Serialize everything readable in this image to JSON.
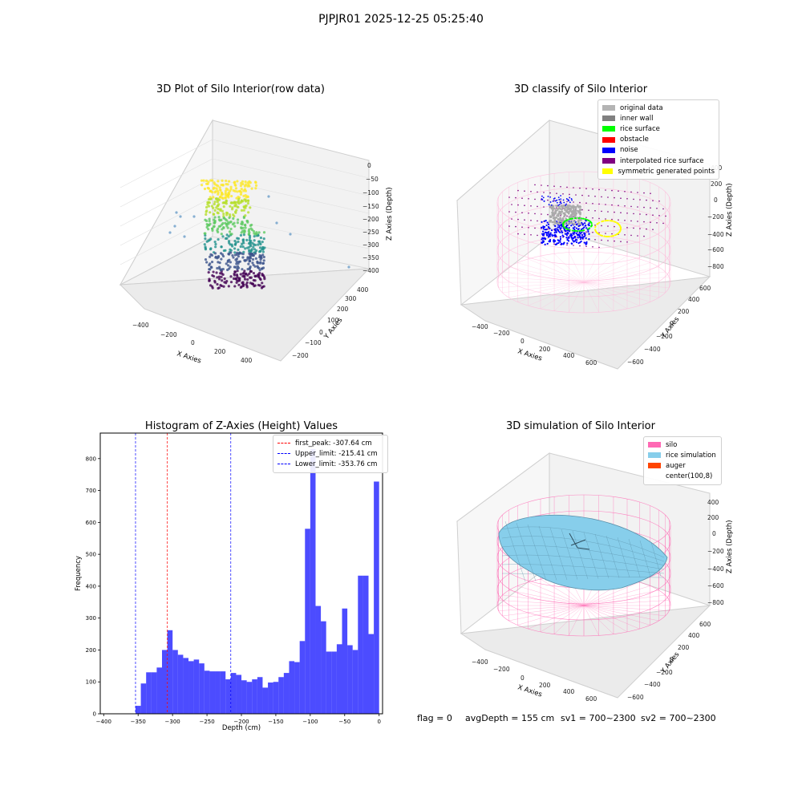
{
  "page": {
    "suptitle": "PJPJR01 2025-12-25 05:25:40"
  },
  "panels": {
    "raw": {
      "title": "3D Plot of Silo Interior(row data)",
      "xlabel": "X Axies",
      "ylabel": "Y Axies",
      "zlabel": "Z Axies (Depth)",
      "xticks": [
        "−400",
        "−200",
        "0",
        "200",
        "400"
      ],
      "yticks": [
        "−200",
        "−100",
        "0",
        "100",
        "200",
        "300",
        "400"
      ],
      "zticks": [
        "0",
        "−50",
        "−100",
        "−150",
        "−200",
        "−250",
        "−300",
        "−350",
        "−400"
      ]
    },
    "classify": {
      "title": "3D classify of Silo Interior",
      "xlabel": "X Axies",
      "ylabel": "Y Axies",
      "zlabel": "Z Axies (Depth)",
      "xticks": [
        "−400",
        "−200",
        "0",
        "200",
        "400",
        "600"
      ],
      "yticks": [
        "−600",
        "−400",
        "−200",
        "0",
        "200",
        "400",
        "600"
      ],
      "zticks": [
        "200",
        "0",
        "−200",
        "−400",
        "−600",
        "−800"
      ],
      "zticks_top": "400",
      "legend": [
        {
          "label": "original data",
          "color": "#b4b4b4"
        },
        {
          "label": "inner wall",
          "color": "#808080"
        },
        {
          "label": "rice surface",
          "color": "#00ff00"
        },
        {
          "label": "obstacle",
          "color": "#ff0000"
        },
        {
          "label": "noise",
          "color": "#0000ff"
        },
        {
          "label": "interpolated rice surface",
          "color": "#800080"
        },
        {
          "label": "symmetric generated points",
          "color": "#ffff00"
        }
      ]
    },
    "simulation": {
      "title": "3D simulation of Silo Interior",
      "xlabel": "X Axies",
      "ylabel": "Y Axies",
      "zlabel": "Z Axies (Depth)",
      "xticks": [
        "−400",
        "−200",
        "0",
        "200",
        "400",
        "600"
      ],
      "yticks": [
        "−600",
        "−400",
        "−200",
        "0",
        "200",
        "400",
        "600"
      ],
      "zticks": [
        "400",
        "200",
        "0",
        "−200",
        "−400",
        "−600",
        "−800"
      ],
      "legend": [
        {
          "label": "silo",
          "color": "#ff69b4"
        },
        {
          "label": "rice simulation",
          "color": "#87ceeb"
        },
        {
          "label": "auger",
          "color": "#ff4500"
        },
        {
          "label": "center(100,8)",
          "color": ""
        }
      ]
    }
  },
  "status": {
    "flag": "flag = 0",
    "avg": "avgDepth = 155 cm",
    "sv1": "sv1 = 700~2300",
    "sv2": "sv2 = 700~2300"
  },
  "chart_data": [
    {
      "type": "bar",
      "title": "Histogram of Z-Axies (Height) Values",
      "xlabel": "Depth (cm)",
      "ylabel": "Frequency",
      "xlim": [
        -405,
        5
      ],
      "ylim": [
        0,
        880
      ],
      "xticks": [
        -400,
        -350,
        -300,
        -250,
        -200,
        -150,
        -100,
        -50,
        0
      ],
      "yticks": [
        0,
        100,
        200,
        300,
        400,
        500,
        600,
        700,
        800
      ],
      "bar_color": "#0000ff",
      "bins_start": -353.76,
      "bins_end": 0,
      "values": [
        25,
        95,
        130,
        130,
        145,
        200,
        262,
        200,
        185,
        175,
        165,
        170,
        158,
        135,
        133,
        133,
        133,
        108,
        128,
        122,
        105,
        100,
        108,
        115,
        82,
        98,
        100,
        115,
        128,
        165,
        162,
        228,
        580,
        830,
        338,
        290,
        195,
        195,
        218,
        330,
        215,
        200,
        433,
        433,
        250,
        728
      ],
      "lines": [
        {
          "label": "first_peak: -307.64 cm",
          "x": -307.64,
          "color": "#ff0000"
        },
        {
          "label": "Upper_limit: -215.41 cm",
          "x": -215.41,
          "color": "#0000ff"
        },
        {
          "label": "Lower_limit: -353.76 cm",
          "x": -353.76,
          "color": "#0000ff"
        }
      ],
      "legend_position": "top-right"
    }
  ]
}
